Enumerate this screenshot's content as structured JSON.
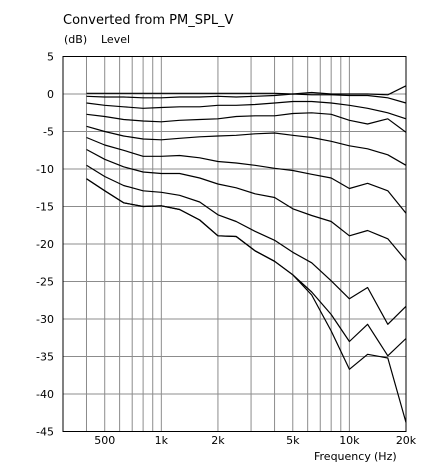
{
  "chart_data": {
    "type": "line",
    "title": "Converted from PM_SPL_V",
    "ylabel_unit": "(dB)",
    "ylabel": "Level",
    "xlabel": "Frequency",
    "xlabel_unit": "(Hz)",
    "xscale": "log",
    "xlim": [
      300,
      20000
    ],
    "ylim": [
      -45,
      5
    ],
    "grid": true,
    "legend": "none",
    "y_ticks": [
      5,
      0,
      -5,
      -10,
      -15,
      -20,
      -25,
      -30,
      -35,
      -40,
      -45
    ],
    "x_tick_labels": [
      {
        "value": 500,
        "label": "500"
      },
      {
        "value": 1000,
        "label": "1k"
      },
      {
        "value": 2000,
        "label": "2k"
      },
      {
        "value": 5000,
        "label": "5k"
      },
      {
        "value": 10000,
        "label": "10k"
      },
      {
        "value": 20000,
        "label": "20k"
      }
    ],
    "x_grid": [
      300,
      400,
      500,
      600,
      700,
      800,
      900,
      1000,
      2000,
      3000,
      4000,
      5000,
      6000,
      7000,
      8000,
      9000,
      10000,
      20000
    ],
    "y_grid": [
      5,
      0,
      -5,
      -10,
      -15,
      -20,
      -25,
      -30,
      -35,
      -40,
      -45
    ],
    "x": [
      400,
      500,
      630,
      800,
      1000,
      1250,
      1600,
      2000,
      2500,
      3150,
      4000,
      5000,
      6300,
      8000,
      10000,
      12500,
      16000,
      20000
    ],
    "series": [
      {
        "values": [
          0.1,
          0.1,
          0.1,
          0.1,
          0.1,
          0.1,
          0.1,
          0.1,
          0.1,
          0.1,
          0.1,
          0.0,
          0.2,
          0.0,
          0.0,
          0.0,
          -0.1,
          1.1
        ]
      },
      {
        "values": [
          -0.3,
          -0.4,
          -0.4,
          -0.5,
          -0.5,
          -0.4,
          -0.4,
          -0.3,
          -0.4,
          -0.3,
          -0.2,
          0.0,
          -0.1,
          -0.1,
          -0.2,
          -0.2,
          -0.5,
          -1.2
        ]
      },
      {
        "values": [
          -1.2,
          -1.5,
          -1.7,
          -1.9,
          -1.8,
          -1.7,
          -1.7,
          -1.5,
          -1.5,
          -1.4,
          -1.2,
          -1.0,
          -1.0,
          -1.2,
          -1.5,
          -1.9,
          -2.5,
          -3.3
        ]
      },
      {
        "values": [
          -2.7,
          -3.0,
          -3.4,
          -3.6,
          -3.7,
          -3.5,
          -3.4,
          -3.3,
          -3.0,
          -2.9,
          -2.9,
          -2.6,
          -2.5,
          -2.7,
          -3.5,
          -4.0,
          -3.3,
          -5.1
        ]
      },
      {
        "values": [
          -4.3,
          -5.0,
          -5.6,
          -6.0,
          -6.1,
          -5.9,
          -5.7,
          -5.6,
          -5.5,
          -5.3,
          -5.2,
          -5.5,
          -5.8,
          -6.3,
          -6.9,
          -7.3,
          -8.1,
          -9.5
        ]
      },
      {
        "values": [
          -5.8,
          -6.8,
          -7.5,
          -8.3,
          -8.3,
          -8.2,
          -8.5,
          -9.0,
          -9.2,
          -9.5,
          -9.9,
          -10.2,
          -10.7,
          -11.2,
          -12.6,
          -11.9,
          -12.9,
          -15.9
        ]
      },
      {
        "values": [
          -7.4,
          -8.7,
          -9.7,
          -10.4,
          -10.6,
          -10.6,
          -11.2,
          -12.0,
          -12.5,
          -13.3,
          -13.8,
          -15.3,
          -16.2,
          -17.0,
          -18.9,
          -18.2,
          -19.3,
          -22.2
        ]
      },
      {
        "values": [
          -9.5,
          -11.0,
          -12.2,
          -12.9,
          -13.1,
          -13.5,
          -14.4,
          -16.1,
          -17.0,
          -18.3,
          -19.5,
          -21.1,
          -22.5,
          -24.9,
          -27.3,
          -25.8,
          -30.7,
          -28.3
        ]
      },
      {
        "values": [
          -11.3,
          -12.9,
          -14.5,
          -15.0,
          -14.9,
          -15.4,
          -16.8,
          -18.9,
          -19.0,
          -20.9,
          -22.3,
          -24.1,
          -26.4,
          -29.4,
          -33.0,
          -30.7,
          -34.9,
          -32.6
        ]
      },
      {
        "values": [
          -11.3,
          -12.9,
          -14.5,
          -15.0,
          -14.9,
          -15.4,
          -16.8,
          -18.9,
          -19.0,
          -20.9,
          -22.3,
          -24.1,
          -26.8,
          -31.6,
          -36.7,
          -34.7,
          -35.2,
          -43.8
        ]
      }
    ]
  }
}
